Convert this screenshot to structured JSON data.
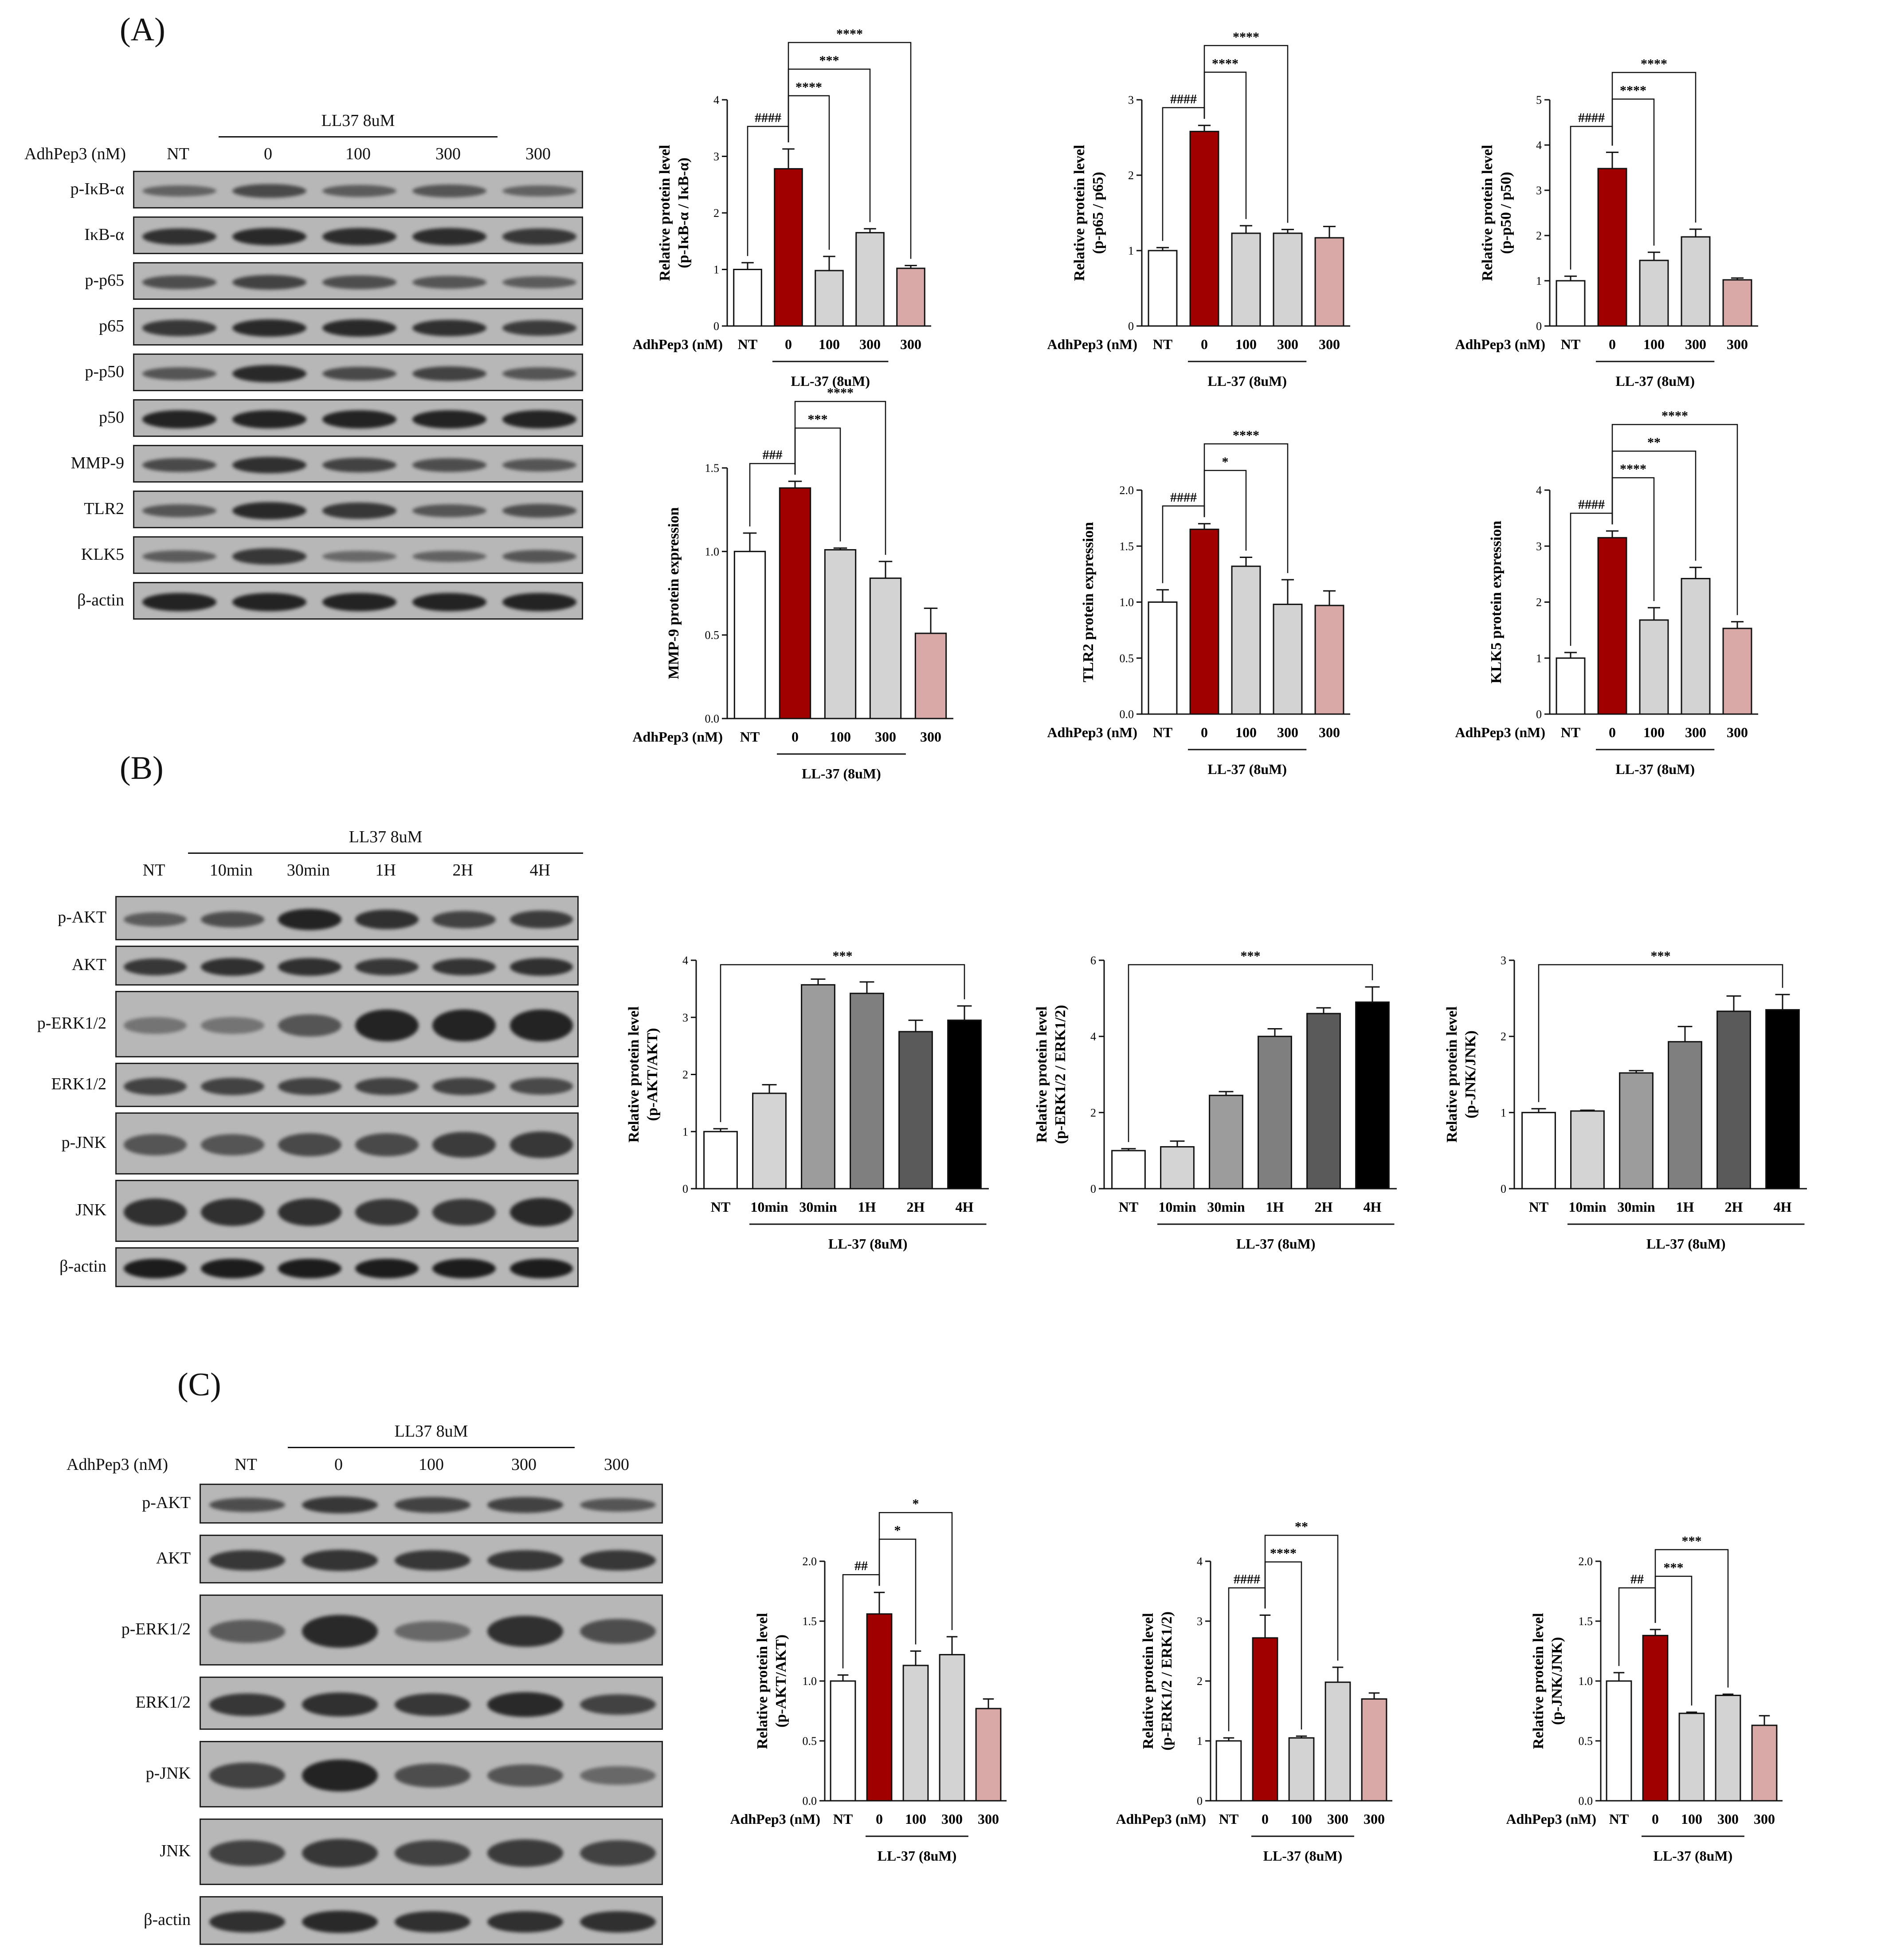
{
  "panels": {
    "A": "(A)",
    "B": "(B)",
    "C": "(C)"
  },
  "blotA": {
    "row_header": "AdhPep3 (nM)",
    "group_label": "LL37 8uM",
    "columns": [
      "NT",
      "0",
      "100",
      "300",
      "300"
    ],
    "lanes": [
      "p-IκB-α",
      "IκB-α",
      "p-p65",
      "p65",
      "p-p50",
      "p50",
      "MMP-9",
      "TLR2",
      "KLK5",
      "β-actin"
    ],
    "intensity": [
      [
        0.35,
        0.55,
        0.4,
        0.45,
        0.35
      ],
      [
        0.75,
        0.8,
        0.78,
        0.78,
        0.7
      ],
      [
        0.5,
        0.6,
        0.5,
        0.45,
        0.4
      ],
      [
        0.7,
        0.8,
        0.8,
        0.75,
        0.65
      ],
      [
        0.45,
        0.8,
        0.55,
        0.6,
        0.45
      ],
      [
        0.85,
        0.85,
        0.85,
        0.85,
        0.85
      ],
      [
        0.55,
        0.75,
        0.6,
        0.5,
        0.45
      ],
      [
        0.45,
        0.8,
        0.7,
        0.45,
        0.5
      ],
      [
        0.4,
        0.7,
        0.3,
        0.35,
        0.45
      ],
      [
        0.85,
        0.85,
        0.85,
        0.85,
        0.85
      ]
    ]
  },
  "blotB": {
    "group_label": "LL37 8uM",
    "columns": [
      "NT",
      "10min",
      "30min",
      "1H",
      "2H",
      "4H"
    ],
    "lanes": [
      "p-AKT",
      "AKT",
      "p-ERK1/2",
      "ERK1/2",
      "p-JNK",
      "JNK",
      "β-actin"
    ],
    "intensity": [
      [
        0.4,
        0.5,
        0.85,
        0.75,
        0.6,
        0.65
      ],
      [
        0.7,
        0.75,
        0.75,
        0.7,
        0.72,
        0.75
      ],
      [
        0.2,
        0.2,
        0.45,
        0.85,
        0.85,
        0.85
      ],
      [
        0.6,
        0.6,
        0.6,
        0.6,
        0.6,
        0.55
      ],
      [
        0.45,
        0.45,
        0.55,
        0.55,
        0.65,
        0.7
      ],
      [
        0.75,
        0.75,
        0.75,
        0.7,
        0.7,
        0.8
      ],
      [
        0.9,
        0.9,
        0.9,
        0.9,
        0.9,
        0.9
      ]
    ]
  },
  "blotC": {
    "row_header": "AdhPep3 (nM)",
    "group_label": "LL37 8uM",
    "columns": [
      "NT",
      "0",
      "100",
      "300",
      "300"
    ],
    "lanes": [
      "p-AKT",
      "AKT",
      "p-ERK1/2",
      "ERK1/2",
      "p-JNK",
      "JNK",
      "β-actin"
    ],
    "intensity": [
      [
        0.5,
        0.7,
        0.6,
        0.6,
        0.45
      ],
      [
        0.7,
        0.72,
        0.7,
        0.7,
        0.7
      ],
      [
        0.4,
        0.8,
        0.3,
        0.75,
        0.5
      ],
      [
        0.7,
        0.75,
        0.7,
        0.8,
        0.6
      ],
      [
        0.6,
        0.85,
        0.5,
        0.45,
        0.3
      ],
      [
        0.6,
        0.7,
        0.6,
        0.65,
        0.6
      ],
      [
        0.75,
        0.8,
        0.75,
        0.75,
        0.75
      ]
    ]
  },
  "colors": {
    "nt": "#ffffff",
    "ll37": "#a00000",
    "treat": "#d3d3d3",
    "adh_only": "#d8a9a7",
    "time": [
      "#ffffff",
      "#d4d4d4",
      "#9c9c9c",
      "#7f7f7f",
      "#5a5a5a",
      "#000000"
    ]
  },
  "chart_data": [
    {
      "type": "bar",
      "ylabel": "Relative protein level",
      "ylabel2": "(p-IκB-α / IκB-α)",
      "xprefix": "AdhPep3 (nM)",
      "categories": [
        "NT",
        "0",
        "100",
        "300",
        "300"
      ],
      "values": [
        1.0,
        2.78,
        0.98,
        1.65,
        1.02
      ],
      "errors": [
        0.12,
        0.35,
        0.25,
        0.07,
        0.05
      ],
      "ylim": [
        0,
        4
      ],
      "yticks": [
        "0",
        "1",
        "2",
        "3",
        "4"
      ],
      "group_label": "LL-37 (8uM)",
      "sig": [
        {
          "from": 0,
          "to": 1,
          "label": "####"
        },
        {
          "from": 1,
          "to": 2,
          "label": "****"
        },
        {
          "from": 1,
          "to": 3,
          "label": "***"
        },
        {
          "from": 1,
          "to": 4,
          "label": "****"
        }
      ]
    },
    {
      "type": "bar",
      "ylabel": "Relative protein level",
      "ylabel2": "(p-p65 / p65)",
      "xprefix": "AdhPep3 (nM)",
      "categories": [
        "NT",
        "0",
        "100",
        "300",
        "300"
      ],
      "values": [
        1.0,
        2.58,
        1.23,
        1.23,
        1.17
      ],
      "errors": [
        0.04,
        0.08,
        0.1,
        0.05,
        0.15
      ],
      "ylim": [
        0,
        3
      ],
      "yticks": [
        "0",
        "1",
        "2",
        "3"
      ],
      "group_label": "LL-37 (8uM)",
      "sig": [
        {
          "from": 0,
          "to": 1,
          "label": "####"
        },
        {
          "from": 1,
          "to": 2,
          "label": "****"
        },
        {
          "from": 1,
          "to": 3,
          "label": "****"
        }
      ]
    },
    {
      "type": "bar",
      "ylabel": "Relative protein level",
      "ylabel2": "(p-p50 / p50)",
      "xprefix": "AdhPep3 (nM)",
      "categories": [
        "NT",
        "0",
        "100",
        "300",
        "300"
      ],
      "values": [
        1.0,
        3.48,
        1.45,
        1.97,
        1.02
      ],
      "errors": [
        0.1,
        0.36,
        0.18,
        0.17,
        0.04
      ],
      "ylim": [
        0,
        5
      ],
      "yticks": [
        "0",
        "1",
        "2",
        "3",
        "4",
        "5"
      ],
      "group_label": "LL-37 (8uM)",
      "sig": [
        {
          "from": 0,
          "to": 1,
          "label": "####"
        },
        {
          "from": 1,
          "to": 2,
          "label": "****"
        },
        {
          "from": 1,
          "to": 3,
          "label": "****"
        }
      ]
    },
    {
      "type": "bar",
      "ylabel": "MMP-9 protein expression",
      "ylabel2": "",
      "xprefix": "AdhPep3 (nM)",
      "categories": [
        "NT",
        "0",
        "100",
        "300",
        "300"
      ],
      "values": [
        1.0,
        1.38,
        1.01,
        0.84,
        0.51
      ],
      "errors": [
        0.11,
        0.04,
        0.01,
        0.1,
        0.15
      ],
      "ylim": [
        0,
        1.5
      ],
      "yticks": [
        "0.0",
        "0.5",
        "1.0",
        "1.5"
      ],
      "group_label": "LL-37 (8uM)",
      "sig": [
        {
          "from": 0,
          "to": 1,
          "label": "###"
        },
        {
          "from": 1,
          "to": 2,
          "label": "***"
        },
        {
          "from": 1,
          "to": 3,
          "label": "****"
        }
      ]
    },
    {
      "type": "bar",
      "ylabel": "TLR2 protein expression",
      "ylabel2": "",
      "xprefix": "AdhPep3 (nM)",
      "categories": [
        "NT",
        "0",
        "100",
        "300",
        "300"
      ],
      "values": [
        1.0,
        1.65,
        1.32,
        0.98,
        0.97
      ],
      "errors": [
        0.11,
        0.05,
        0.08,
        0.22,
        0.13
      ],
      "ylim": [
        0,
        2.0
      ],
      "yticks": [
        "0.0",
        "0.5",
        "1.0",
        "1.5",
        "2.0"
      ],
      "group_label": "LL-37 (8uM)",
      "sig": [
        {
          "from": 0,
          "to": 1,
          "label": "####"
        },
        {
          "from": 1,
          "to": 2,
          "label": "*"
        },
        {
          "from": 1,
          "to": 3,
          "label": "****"
        }
      ]
    },
    {
      "type": "bar",
      "ylabel": "KLK5 protein expression",
      "ylabel2": "",
      "xprefix": "AdhPep3 (nM)",
      "categories": [
        "NT",
        "0",
        "100",
        "300",
        "300"
      ],
      "values": [
        1.0,
        3.15,
        1.68,
        2.42,
        1.53
      ],
      "errors": [
        0.1,
        0.12,
        0.22,
        0.2,
        0.12
      ],
      "ylim": [
        0,
        4
      ],
      "yticks": [
        "0",
        "1",
        "2",
        "3",
        "4"
      ],
      "group_label": "LL-37 (8uM)",
      "sig": [
        {
          "from": 0,
          "to": 1,
          "label": "####"
        },
        {
          "from": 1,
          "to": 2,
          "label": "****"
        },
        {
          "from": 1,
          "to": 3,
          "label": "**"
        },
        {
          "from": 1,
          "to": 4,
          "label": "****"
        }
      ]
    },
    {
      "type": "bar",
      "ylabel": "Relative protein level",
      "ylabel2": "(p-AKT/AKT)",
      "xprefix": "",
      "categories": [
        "NT",
        "10min",
        "30min",
        "1H",
        "2H",
        "4H"
      ],
      "values": [
        1.0,
        1.67,
        3.57,
        3.42,
        2.75,
        2.95
      ],
      "errors": [
        0.05,
        0.15,
        0.1,
        0.2,
        0.2,
        0.25
      ],
      "ylim": [
        0,
        4
      ],
      "yticks": [
        "0",
        "1",
        "2",
        "3",
        "4"
      ],
      "group_label": "LL-37 (8uM)",
      "sig": [
        {
          "from": 0,
          "to": 5,
          "label": "***"
        }
      ]
    },
    {
      "type": "bar",
      "ylabel": "Relative protein level",
      "ylabel2": "(p-ERK1/2 / ERK1/2)",
      "xprefix": "",
      "categories": [
        "NT",
        "10min",
        "30min",
        "1H",
        "2H",
        "4H"
      ],
      "values": [
        1.0,
        1.1,
        2.45,
        4.0,
        4.6,
        4.9
      ],
      "errors": [
        0.05,
        0.15,
        0.1,
        0.2,
        0.15,
        0.4
      ],
      "ylim": [
        0,
        6
      ],
      "yticks": [
        "0",
        "2",
        "4",
        "6"
      ],
      "group_label": "LL-37 (8uM)",
      "sig": [
        {
          "from": 0,
          "to": 5,
          "label": "***"
        }
      ]
    },
    {
      "type": "bar",
      "ylabel": "Relative protein level",
      "ylabel2": "(p-JNK/JNK)",
      "xprefix": "",
      "categories": [
        "NT",
        "10min",
        "30min",
        "1H",
        "2H",
        "4H"
      ],
      "values": [
        1.0,
        1.02,
        1.52,
        1.93,
        2.33,
        2.35
      ],
      "errors": [
        0.05,
        0.01,
        0.03,
        0.2,
        0.2,
        0.2
      ],
      "ylim": [
        0,
        3
      ],
      "yticks": [
        "0",
        "1",
        "2",
        "3"
      ],
      "group_label": "LL-37 (8uM)",
      "sig": [
        {
          "from": 0,
          "to": 5,
          "label": "***"
        }
      ]
    },
    {
      "type": "bar",
      "ylabel": "Relative protein level",
      "ylabel2": "(p-AKT/AKT)",
      "xprefix": "AdhPep3 (nM)",
      "categories": [
        "NT",
        "0",
        "100",
        "300",
        "300"
      ],
      "values": [
        1.0,
        1.56,
        1.13,
        1.22,
        0.77
      ],
      "errors": [
        0.05,
        0.18,
        0.12,
        0.15,
        0.08
      ],
      "ylim": [
        0,
        2.0
      ],
      "yticks": [
        "0.0",
        "0.5",
        "1.0",
        "1.5",
        "2.0"
      ],
      "group_label": "LL-37 (8uM)",
      "sig": [
        {
          "from": 0,
          "to": 1,
          "label": "##"
        },
        {
          "from": 1,
          "to": 2,
          "label": "*"
        },
        {
          "from": 1,
          "to": 3,
          "label": "*"
        }
      ]
    },
    {
      "type": "bar",
      "ylabel": "Relative protein level",
      "ylabel2": "(p-ERK1/2 / ERK1/2)",
      "xprefix": "AdhPep3 (nM)",
      "categories": [
        "NT",
        "0",
        "100",
        "300",
        "300"
      ],
      "values": [
        1.0,
        2.72,
        1.05,
        1.98,
        1.7
      ],
      "errors": [
        0.05,
        0.38,
        0.03,
        0.25,
        0.1
      ],
      "ylim": [
        0,
        4
      ],
      "yticks": [
        "0",
        "1",
        "2",
        "3",
        "4"
      ],
      "group_label": "LL-37 (8uM)",
      "sig": [
        {
          "from": 0,
          "to": 1,
          "label": "####"
        },
        {
          "from": 1,
          "to": 2,
          "label": "****"
        },
        {
          "from": 1,
          "to": 3,
          "label": "**"
        }
      ]
    },
    {
      "type": "bar",
      "ylabel": "Relative protein level",
      "ylabel2": "(p-JNK/JNK)",
      "xprefix": "AdhPep3 (nM)",
      "categories": [
        "NT",
        "0",
        "100",
        "300",
        "300"
      ],
      "values": [
        1.0,
        1.38,
        0.73,
        0.88,
        0.63
      ],
      "errors": [
        0.07,
        0.05,
        0.01,
        0.01,
        0.08
      ],
      "ylim": [
        0,
        2.0
      ],
      "yticks": [
        "0.0",
        "0.5",
        "1.0",
        "1.5",
        "2.0"
      ],
      "group_label": "LL-37 (8uM)",
      "sig": [
        {
          "from": 0,
          "to": 1,
          "label": "##"
        },
        {
          "from": 1,
          "to": 2,
          "label": "***"
        },
        {
          "from": 1,
          "to": 3,
          "label": "***"
        }
      ]
    }
  ]
}
